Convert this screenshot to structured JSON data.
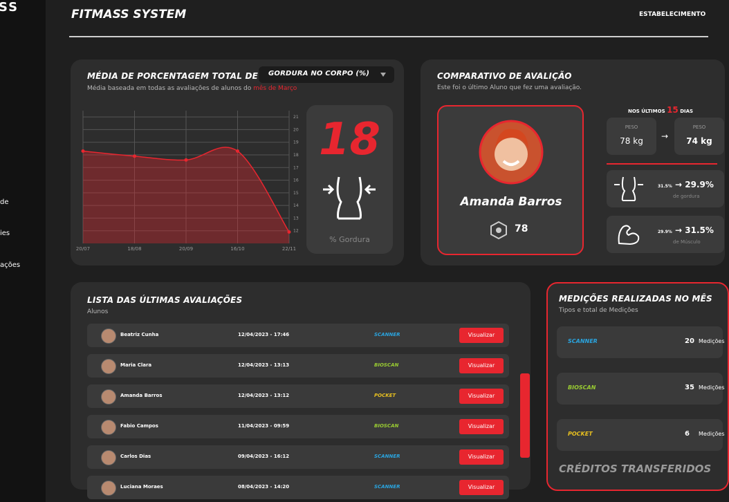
{
  "sidebar": {
    "brand": "SS",
    "items": [
      "de",
      "ies",
      "ações"
    ]
  },
  "header": {
    "title": "FITMASS SYSTEM",
    "right": "ESTABELECIMENTO"
  },
  "average_card": {
    "title": "MÉDIA DE PORCENTAGEM TOTAL DE",
    "dropdown": "GORDURA NO CORPO (%)",
    "subtitle": "Média baseada em todas as avaliações de alunos do",
    "subtitle_highlight": "mês de Março",
    "chart": {
      "type": "area",
      "color": "#e8262f",
      "x": [
        "20/07",
        "18/08",
        "20/09",
        "16/10",
        "22/11"
      ],
      "values": [
        18.3,
        17.9,
        17.6,
        18.3,
        11.9
      ],
      "ylim": [
        11,
        21.5
      ],
      "yticks": [
        12,
        13,
        14,
        15,
        16,
        17,
        18,
        19,
        20,
        21
      ]
    },
    "big_value": 18,
    "big_label": "% Gordura"
  },
  "compare_card": {
    "title": "COMPARATIVO DE AVALIÇÃO",
    "subtitle": "Este foi o último Aluno que fez uma avaliação.",
    "student_name": "Amanda Barros",
    "student_score": 78,
    "period_prefix": "NOS ÚLTIMOS",
    "period_value": 15,
    "period_suffix": "DIAS",
    "weight_before_label": "PESO",
    "weight_before": "78 kg",
    "weight_after_label": "PESO",
    "weight_after": "74 kg",
    "fat_before": "31.5%",
    "fat_after": "29.9%",
    "fat_label": "de gordura",
    "muscle_before": "29.9%",
    "muscle_after": "31.5%",
    "muscle_label": "de Músculo"
  },
  "table": {
    "title": "LISTA DAS ÚLTIMAS AVALIAÇÕES",
    "subtitle": "Alunos",
    "rows": [
      {
        "name": "Beatriz Cunha",
        "date": "12/04/2023 - 17:46",
        "type": "SCANNER",
        "type_color": "#2aa5e0",
        "action": "Visualizar"
      },
      {
        "name": "Maria Clara",
        "date": "12/04/2023 - 13:13",
        "type": "BIOSCAN",
        "type_color": "#9acd32",
        "action": "Visualizar"
      },
      {
        "name": "Amanda Barros",
        "date": "12/04/2023 - 13:12",
        "type": "POCKET",
        "type_color": "#e8c020",
        "action": "Visualizar"
      },
      {
        "name": "Fabio Campos",
        "date": "11/04/2023 - 09:59",
        "type": "BIOSCAN",
        "type_color": "#9acd32",
        "action": "Visualizar"
      },
      {
        "name": "Carlos Dias",
        "date": "09/04/2023 - 16:12",
        "type": "SCANNER",
        "type_color": "#2aa5e0",
        "action": "Visualizar"
      },
      {
        "name": "Luciana Moraes",
        "date": "08/04/2023 - 14:20",
        "type": "SCANNER",
        "type_color": "#2aa5e0",
        "action": "Visualizar"
      }
    ]
  },
  "measures_card": {
    "title": "MEDIÇÕES REALIZADAS NO MÊS",
    "subtitle": "Tipos e total de Medições",
    "items": [
      {
        "type": "SCANNER",
        "color": "#2aa5e0",
        "count": 20,
        "unit": "Medições"
      },
      {
        "type": "BIOSCAN",
        "color": "#9acd32",
        "count": 35,
        "unit": "Medições"
      },
      {
        "type": "POCKET",
        "color": "#e8c020",
        "count": 6,
        "unit": "Medições"
      }
    ],
    "footer": "CRÉDITOS TRANSFERIDOS"
  }
}
